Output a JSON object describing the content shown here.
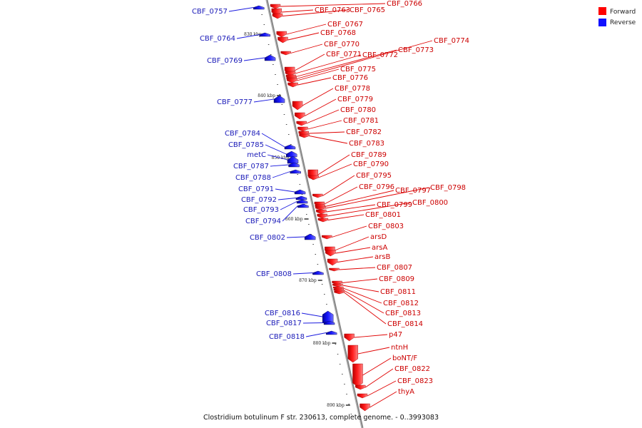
{
  "caption": "Clostridium botulinum F str. 230613, complete genome. - 0..3993083",
  "legend": {
    "forward": {
      "label": "Forward",
      "color": "#ff0000"
    },
    "reverse": {
      "label": "Reverse",
      "color": "#1010ff"
    }
  },
  "scale": [
    {
      "text": "830 kbp"
    },
    {
      "text": "840 kbp"
    },
    {
      "text": "850 kbp"
    },
    {
      "text": "860 kbp"
    },
    {
      "text": "870 kbp"
    },
    {
      "text": "880 kbp"
    },
    {
      "text": "890 kbp"
    }
  ],
  "forward_genes": [
    "CBF_0763",
    "CBF_0765",
    "CBF_0766",
    "CBF_0767",
    "CBF_0768",
    "CBF_0770",
    "CBF_0771",
    "CBF_0772",
    "CBF_0773",
    "CBF_0774",
    "CBF_0775",
    "CBF_0776",
    "CBF_0778",
    "CBF_0779",
    "CBF_0780",
    "CBF_0781",
    "CBF_0782",
    "CBF_0783",
    "CBF_0789",
    "CBF_0790",
    "CBF_0795",
    "CBF_0796",
    "CBF_0797",
    "CBF_0798",
    "CBF_0799",
    "CBF_0800",
    "CBF_0801",
    "CBF_0803",
    "arsD",
    "arsA",
    "arsB",
    "CBF_0807",
    "CBF_0809",
    "CBF_0811",
    "CBF_0812",
    "CBF_0813",
    "CBF_0814",
    "p47",
    "ntnH",
    "boNT/F",
    "CBF_0822",
    "CBF_0823",
    "thyA"
  ],
  "reverse_genes": [
    "CBF_0757",
    "CBF_0764",
    "CBF_0769",
    "CBF_0777",
    "CBF_0784",
    "CBF_0785",
    "metC",
    "CBF_0787",
    "CBF_0788",
    "CBF_0791",
    "CBF_0792",
    "CBF_0793",
    "CBF_0794",
    "CBF_0802",
    "CBF_0808",
    "CBF_0816",
    "CBF_0817",
    "CBF_0818"
  ]
}
